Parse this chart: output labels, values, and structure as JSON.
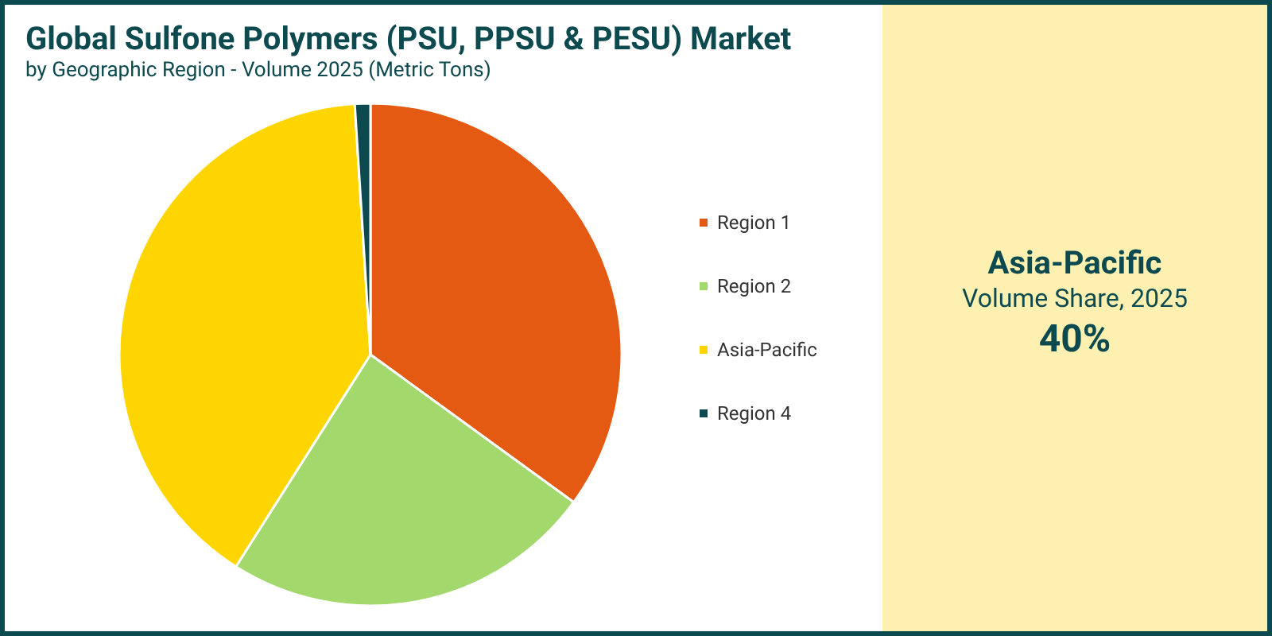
{
  "chart_data": {
    "type": "pie",
    "title": "Global Sulfone Polymers (PSU, PPSU & PESU) Market",
    "subtitle": "by Geographic Region - Volume 2025 (Metric Tons)",
    "categories": [
      "Region 1",
      "Region 2",
      "Asia-Pacific",
      "Region 4"
    ],
    "values": [
      35,
      24,
      40,
      1
    ],
    "colors": [
      "#e55a12",
      "#a3d86d",
      "#ffd500",
      "#0d4a4f"
    ],
    "legend": "right",
    "annotations": [
      "Asia-Pacific",
      "Volume Share, 2025",
      "40%"
    ]
  }
}
